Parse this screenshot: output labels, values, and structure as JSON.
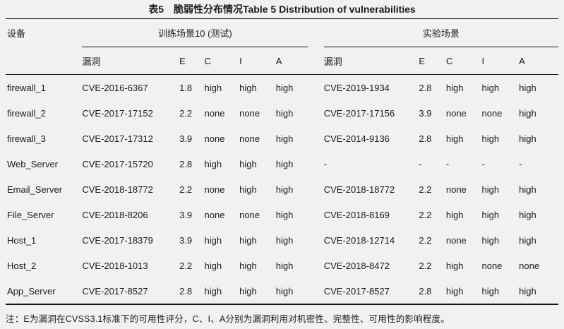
{
  "title": "表5　脆弱性分布情况Table 5 Distribution of vulnerabilities",
  "table": {
    "device_header": "设备",
    "groups": [
      {
        "label": "训练场景10 (测试)",
        "sub_headers": [
          "漏洞",
          "E",
          "C",
          "I",
          "A"
        ]
      },
      {
        "label": "实验场景",
        "sub_headers": [
          "漏洞",
          "E",
          "C",
          "I",
          "A"
        ]
      }
    ],
    "rows": [
      [
        "firewall_1",
        "CVE-2016-6367",
        "1.8",
        "high",
        "high",
        "high",
        "CVE-2019-1934",
        "2.8",
        "high",
        "high",
        "high"
      ],
      [
        "firewall_2",
        "CVE-2017-17152",
        "2.2",
        "none",
        "none",
        "high",
        "CVE-2017-17156",
        "3.9",
        "none",
        "none",
        "high"
      ],
      [
        "firewall_3",
        "CVE-2017-17312",
        "3.9",
        "none",
        "none",
        "high",
        "CVE-2014-9136",
        "2.8",
        "high",
        "high",
        "high"
      ],
      [
        "Web_Server",
        "CVE-2017-15720",
        "2.8",
        "high",
        "high",
        "high",
        "-",
        "-",
        "-",
        "-",
        "-"
      ],
      [
        "Email_Server",
        "CVE-2018-18772",
        "2.2",
        "none",
        "high",
        "high",
        "CVE-2018-18772",
        "2.2",
        "none",
        "high",
        "high"
      ],
      [
        "File_Server",
        "CVE-2018-8206",
        "3.9",
        "none",
        "none",
        "high",
        "CVE-2018-8169",
        "2.2",
        "high",
        "high",
        "high"
      ],
      [
        "Host_1",
        "CVE-2017-18379",
        "3.9",
        "high",
        "high",
        "high",
        "CVE-2018-12714",
        "2.2",
        "none",
        "high",
        "high"
      ],
      [
        "Host_2",
        "CVE-2018-1013",
        "2.2",
        "high",
        "high",
        "high",
        "CVE-2018-8472",
        "2.2",
        "high",
        "none",
        "none"
      ],
      [
        "App_Server",
        "CVE-2017-8527",
        "2.8",
        "high",
        "high",
        "high",
        "CVE-2017-8527",
        "2.8",
        "high",
        "high",
        "high"
      ]
    ]
  },
  "note": "注：E为漏洞在CVSS3.1标准下的可用性评分，C、I、A分别为漏洞利用对机密性、完整性、可用性的影响程度。"
}
